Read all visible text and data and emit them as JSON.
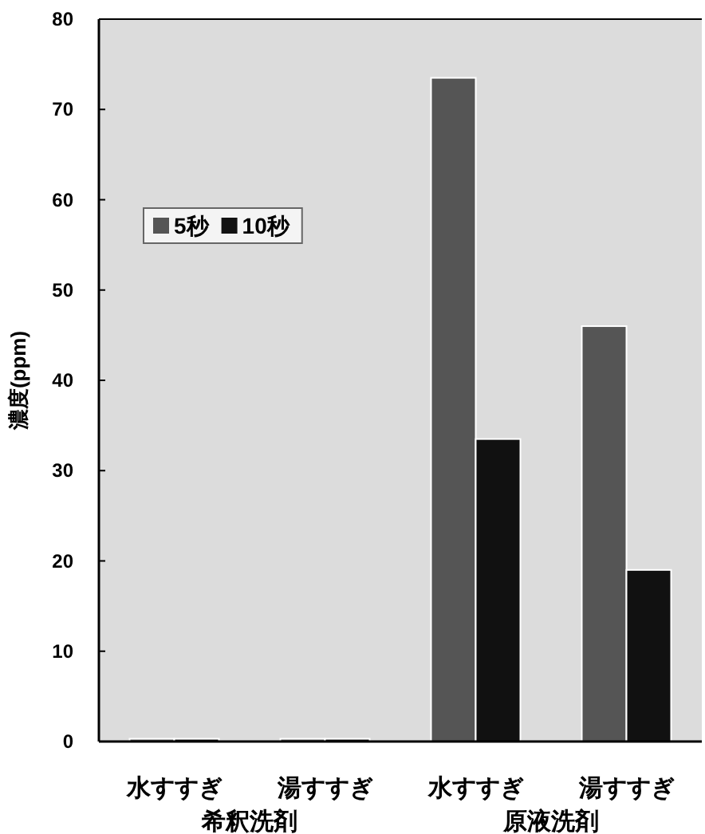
{
  "chart_data": {
    "type": "bar",
    "ylabel": "濃度(ppm)",
    "categories": [
      "水すすぎ",
      "湯すすぎ",
      "水すすぎ",
      "湯すすぎ"
    ],
    "series": [
      {
        "name": "5秒",
        "color": "#555555",
        "values": [
          0.3,
          0.3,
          73.5,
          46
        ]
      },
      {
        "name": "10秒",
        "color": "#111111",
        "values": [
          0.3,
          0.3,
          33.5,
          19
        ]
      }
    ],
    "ylim": [
      0,
      80
    ],
    "yticks": [
      0,
      10,
      20,
      30,
      40,
      50,
      60,
      70,
      80
    ],
    "grid": false,
    "legend": "left",
    "annotations": [
      "希釈洗剤",
      "原液洗剤"
    ]
  }
}
